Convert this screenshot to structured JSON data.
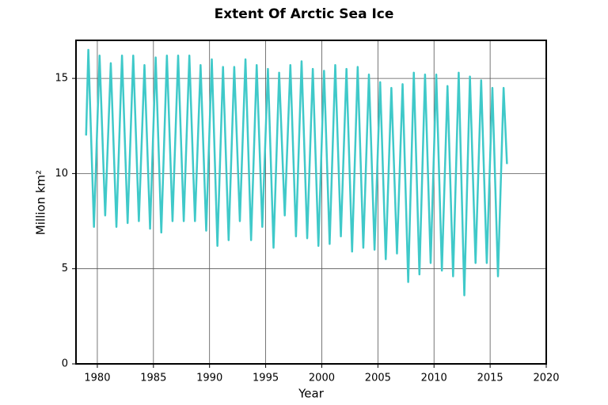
{
  "chart_data": {
    "type": "line",
    "title": "Extent Of Arctic Sea Ice",
    "xlabel": "Year",
    "ylabel": "Million km²",
    "x": [
      1979.0,
      1979.2,
      1979.7,
      1980.2,
      1980.7,
      1981.2,
      1981.7,
      1982.2,
      1982.7,
      1983.2,
      1983.7,
      1984.2,
      1984.7,
      1985.2,
      1985.7,
      1986.2,
      1986.7,
      1987.2,
      1987.7,
      1988.2,
      1988.7,
      1989.2,
      1989.7,
      1990.2,
      1990.7,
      1991.2,
      1991.7,
      1992.2,
      1992.7,
      1993.2,
      1993.7,
      1994.2,
      1994.7,
      1995.2,
      1995.7,
      1996.2,
      1996.7,
      1997.2,
      1997.7,
      1998.2,
      1998.7,
      1999.2,
      1999.7,
      2000.2,
      2000.7,
      2001.2,
      2001.7,
      2002.2,
      2002.7,
      2003.2,
      2003.7,
      2004.2,
      2004.7,
      2005.2,
      2005.7,
      2006.2,
      2006.7,
      2007.2,
      2007.7,
      2008.2,
      2008.7,
      2009.2,
      2009.7,
      2010.2,
      2010.7,
      2011.2,
      2011.7,
      2012.2,
      2012.7,
      2013.2,
      2013.7,
      2014.2,
      2014.7,
      2015.2,
      2015.7,
      2016.2,
      2016.5
    ],
    "values": [
      12.0,
      16.5,
      7.2,
      16.2,
      7.8,
      15.8,
      7.2,
      16.2,
      7.4,
      16.2,
      7.5,
      15.7,
      7.1,
      16.1,
      6.9,
      16.2,
      7.5,
      16.2,
      7.5,
      16.2,
      7.5,
      15.7,
      7.0,
      16.0,
      6.2,
      15.6,
      6.5,
      15.6,
      7.5,
      16.0,
      6.5,
      15.7,
      7.2,
      15.5,
      6.1,
      15.3,
      7.8,
      15.7,
      6.7,
      15.9,
      6.6,
      15.5,
      6.2,
      15.4,
      6.3,
      15.7,
      6.7,
      15.5,
      5.9,
      15.6,
      6.1,
      15.2,
      6.0,
      14.8,
      5.5,
      14.5,
      5.8,
      14.7,
      4.3,
      15.3,
      4.7,
      15.2,
      5.3,
      15.2,
      4.9,
      14.6,
      4.6,
      15.3,
      3.6,
      15.1,
      5.3,
      14.9,
      5.3,
      14.5,
      4.6,
      14.5,
      10.5
    ],
    "color": "#3fc9c9",
    "xlim": [
      1978.1,
      2020
    ],
    "ylim": [
      0,
      17
    ],
    "xticks": [
      1980,
      1985,
      1990,
      1995,
      2000,
      2005,
      2010,
      2015,
      2020
    ],
    "yticks": [
      0,
      5,
      10,
      15
    ],
    "grid": true
  }
}
